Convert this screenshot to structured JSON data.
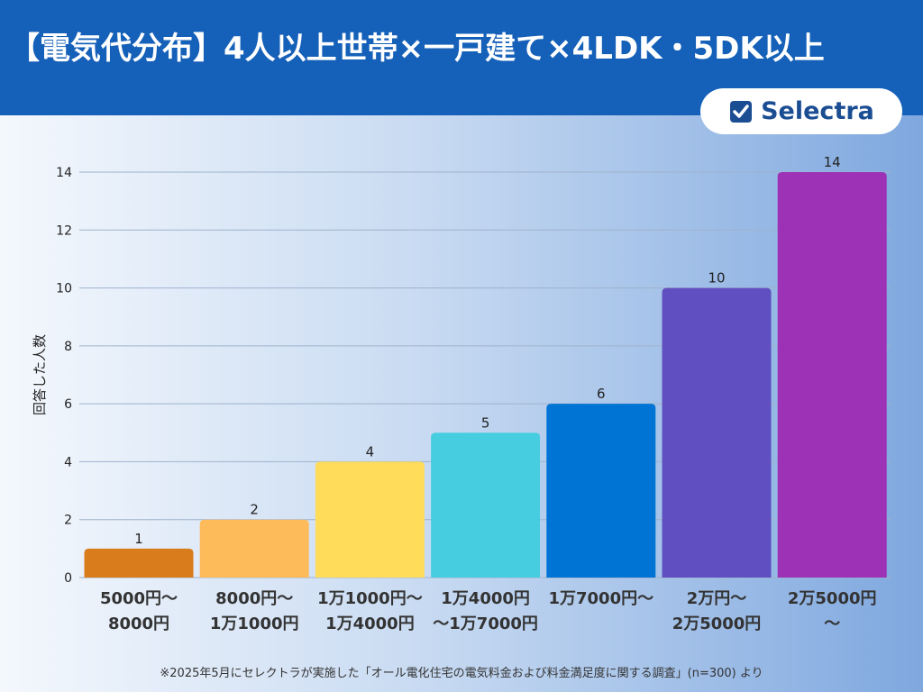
{
  "header": {
    "title": "【電気代分布】4人以上世帯×一戸建て×4LDK・5DK以上",
    "logo_text": "Selectra",
    "logo_icon": "checkbox-check-icon"
  },
  "footnote": "※2025年5月にセレクトラが実施した「オール電化住宅の電気料金および料金満足度に関する調査」(n=300) より",
  "chart_data": {
    "type": "bar",
    "title": "",
    "xlabel": "",
    "ylabel": "回答した人数",
    "ylim": [
      0,
      14
    ],
    "yticks": [
      0,
      2,
      4,
      6,
      8,
      10,
      12,
      14
    ],
    "grid": true,
    "categories": [
      [
        "5000円〜",
        "8000円"
      ],
      [
        "8000円〜",
        "1万1000円"
      ],
      [
        "1万1000円〜",
        "1万4000円"
      ],
      [
        "1万4000円",
        "〜1万7000円"
      ],
      [
        "1万7000円〜"
      ],
      [
        "2万円〜",
        "2万5000円"
      ],
      [
        "2万5000円",
        "〜"
      ]
    ],
    "values": [
      1,
      2,
      4,
      5,
      6,
      10,
      14
    ],
    "colors": [
      "#d97c1c",
      "#fdbb5a",
      "#ffdc5a",
      "#47cde0",
      "#0074d4",
      "#604fc0",
      "#9d32b7"
    ]
  }
}
